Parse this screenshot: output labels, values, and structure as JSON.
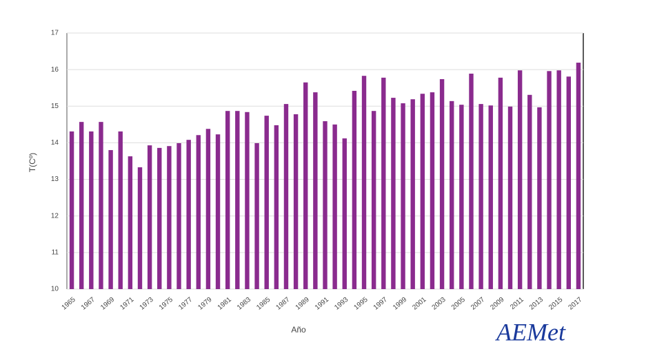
{
  "chart_data": {
    "type": "bar",
    "x_label": "Año",
    "y_label": "T(Cº)",
    "categories": [
      "1965",
      null,
      "1967",
      null,
      "1969",
      null,
      "1971",
      null,
      "1973",
      null,
      "1975",
      null,
      "1977",
      null,
      "1979",
      null,
      "1981",
      null,
      "1983",
      null,
      "1985",
      null,
      "1987",
      null,
      "1989",
      null,
      "1991",
      null,
      "1993",
      null,
      "1995",
      null,
      "1997",
      null,
      "1999",
      null,
      "2001",
      null,
      "2003",
      null,
      "2005",
      null,
      "2007",
      null,
      "2009",
      null,
      "2011",
      null,
      "2013",
      null,
      "2015",
      null,
      "2017"
    ],
    "values": [
      14.31,
      14.57,
      14.31,
      14.57,
      13.8,
      14.31,
      13.63,
      13.33,
      13.93,
      13.86,
      13.91,
      13.99,
      14.08,
      14.21,
      14.38,
      14.23,
      14.87,
      14.87,
      14.84,
      13.99,
      14.74,
      14.48,
      15.06,
      14.78,
      15.65,
      15.38,
      14.59,
      14.5,
      14.12,
      15.42,
      15.83,
      14.87,
      15.78,
      15.23,
      15.08,
      15.19,
      15.34,
      15.38,
      15.74,
      15.14,
      15.04,
      15.89,
      15.06,
      15.02,
      15.78,
      14.99,
      15.98,
      15.31,
      14.97,
      15.96,
      15.98,
      15.81,
      16.19
    ],
    "color": "#8a2b8e",
    "ylim": [
      10,
      17
    ],
    "yticks": [
      10,
      11,
      12,
      13,
      14,
      15,
      16,
      17
    ],
    "grid": true
  },
  "logo": "AEMet"
}
